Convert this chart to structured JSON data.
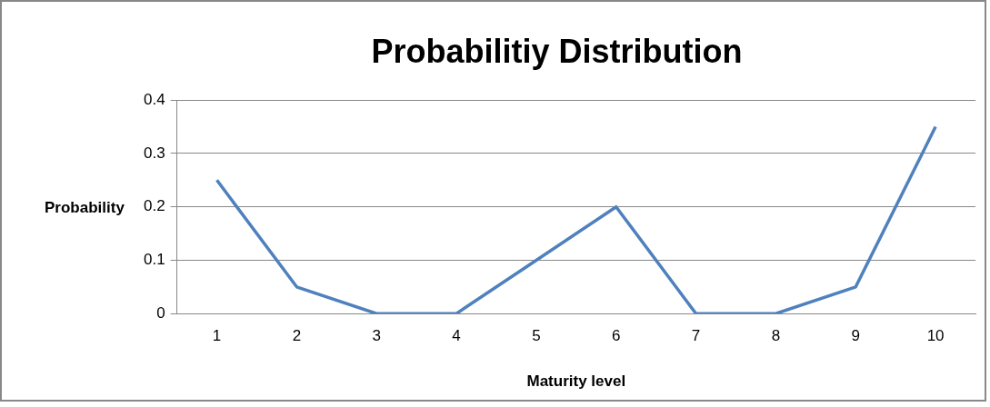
{
  "chart_data": {
    "type": "line",
    "title": "Probabilitiy Distribution",
    "xlabel": "Maturity level",
    "ylabel": "Probability",
    "categories": [
      "1",
      "2",
      "3",
      "4",
      "5",
      "6",
      "7",
      "8",
      "9",
      "10"
    ],
    "series": [
      {
        "color": "#4f81bd",
        "values": [
          0.25,
          0.05,
          0,
          0,
          0.1,
          0.2,
          0,
          0,
          0.05,
          0.35
        ]
      }
    ],
    "ylim": [
      0,
      0.4
    ],
    "yticks": [
      0,
      0.1,
      0.2,
      0.3,
      0.4
    ],
    "grid": "y",
    "legend": false,
    "marker": "none",
    "line_style": "solid"
  }
}
